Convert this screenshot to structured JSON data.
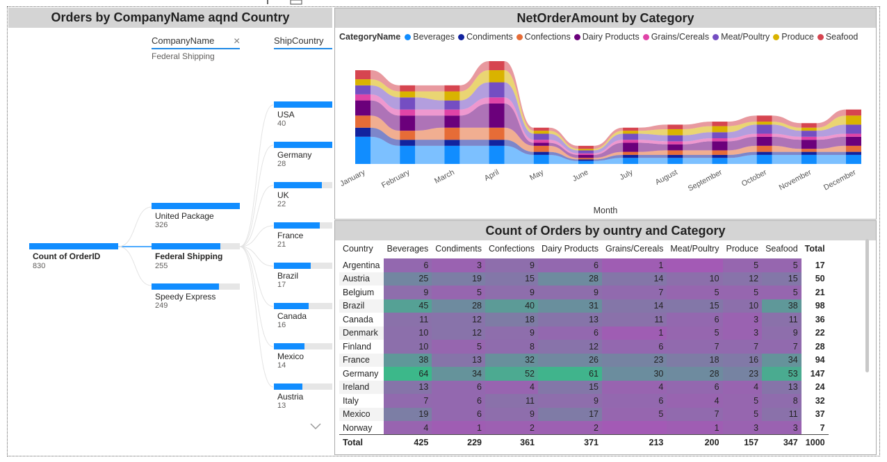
{
  "left_panel": {
    "title": "Orders by CompanyName aqnd Country",
    "company_header": "CompanyName",
    "company_filter": "Federal Shipping",
    "close_icon": "×",
    "country_header": "ShipCountry",
    "root": {
      "label": "Count of OrderID",
      "value": "830",
      "fill": 1.0
    },
    "companies": [
      {
        "label": "United Package",
        "value": "326",
        "fill": 1.0
      },
      {
        "label": "Federal Shipping",
        "value": "255",
        "fill": 0.78
      },
      {
        "label": "Speedy Express",
        "value": "249",
        "fill": 0.76
      }
    ],
    "countries": [
      {
        "label": "USA",
        "value": "40",
        "fill": 1.0
      },
      {
        "label": "Germany",
        "value": "28",
        "fill": 1.0
      },
      {
        "label": "UK",
        "value": "22",
        "fill": 0.82
      },
      {
        "label": "France",
        "value": "21",
        "fill": 0.78
      },
      {
        "label": "Brazil",
        "value": "17",
        "fill": 0.63
      },
      {
        "label": "Canada",
        "value": "16",
        "fill": 0.6
      },
      {
        "label": "Mexico",
        "value": "14",
        "fill": 0.52
      },
      {
        "label": "Austria",
        "value": "13",
        "fill": 0.49
      }
    ]
  },
  "chart_panel": {
    "title": "NetOrderAmount by Category",
    "legend_title": "CategoryName",
    "xlabel": "Month"
  },
  "chart_data": {
    "type": "area",
    "title": "NetOrderAmount by Category",
    "xlabel": "Month",
    "ylabel": "",
    "legend_title": "CategoryName",
    "legend_position": "top-left",
    "categories": [
      "January",
      "February",
      "March",
      "April",
      "May",
      "June",
      "July",
      "August",
      "September",
      "October",
      "November",
      "December"
    ],
    "series": [
      {
        "name": "Beverages",
        "color": "#118dff",
        "values": [
          9,
          6,
          6,
          6,
          3,
          1,
          2,
          2,
          2,
          3,
          3,
          3
        ]
      },
      {
        "name": "Condiments",
        "color": "#12239e",
        "values": [
          3,
          2,
          2,
          2,
          1,
          0.5,
          1,
          1,
          1,
          1,
          1,
          1
        ]
      },
      {
        "name": "Confections",
        "color": "#e66c37",
        "values": [
          4,
          3,
          4,
          4,
          2,
          0.5,
          1,
          1.5,
          1.5,
          2,
          1,
          2
        ]
      },
      {
        "name": "Dairy Products",
        "color": "#6b007b",
        "values": [
          5,
          5,
          4,
          8,
          1,
          1,
          3,
          2,
          3,
          3,
          3,
          3
        ]
      },
      {
        "name": "Grains/Cereals",
        "color": "#e044a7",
        "values": [
          2,
          2,
          2,
          2,
          1,
          0.5,
          1,
          1,
          1,
          1,
          1,
          1
        ]
      },
      {
        "name": "Meat/Poultry",
        "color": "#744ec2",
        "values": [
          3,
          4,
          3,
          5,
          2,
          1,
          2,
          2,
          2,
          3,
          2,
          3
        ]
      },
      {
        "name": "Produce",
        "color": "#d9b300",
        "values": [
          2,
          2,
          3,
          4,
          1,
          0.5,
          1,
          2,
          2,
          1,
          1,
          3
        ]
      },
      {
        "name": "Seafood",
        "color": "#d64550",
        "values": [
          3,
          2,
          2,
          3,
          1,
          1,
          1,
          1.5,
          1.5,
          2,
          1.5,
          2
        ]
      }
    ]
  },
  "table_panel": {
    "title": "Count of Orders by ountry and Category",
    "headers": [
      "Country",
      "Beverages",
      "Condiments",
      "Confections",
      "Dairy Products",
      "Grains/Cereals",
      "Meat/Poultry",
      "Produce",
      "Seafood",
      "Total"
    ],
    "rows": [
      {
        "country": "Argentina",
        "cells": [
          "6",
          "3",
          "9",
          "6",
          "1",
          "",
          "5",
          "5"
        ],
        "total": "17"
      },
      {
        "country": "Austria",
        "cells": [
          "25",
          "19",
          "15",
          "28",
          "14",
          "10",
          "12",
          "15"
        ],
        "total": "50"
      },
      {
        "country": "Belgium",
        "cells": [
          "9",
          "5",
          "9",
          "9",
          "7",
          "5",
          "5",
          "5"
        ],
        "total": "21"
      },
      {
        "country": "Brazil",
        "cells": [
          "45",
          "28",
          "40",
          "31",
          "14",
          "15",
          "10",
          "38"
        ],
        "total": "98"
      },
      {
        "country": "Canada",
        "cells": [
          "11",
          "12",
          "18",
          "13",
          "11",
          "6",
          "3",
          "11"
        ],
        "total": "36"
      },
      {
        "country": "Denmark",
        "cells": [
          "10",
          "12",
          "9",
          "6",
          "1",
          "5",
          "3",
          "9"
        ],
        "total": "22"
      },
      {
        "country": "Finland",
        "cells": [
          "10",
          "5",
          "8",
          "12",
          "6",
          "7",
          "7",
          "7"
        ],
        "total": "28"
      },
      {
        "country": "France",
        "cells": [
          "38",
          "13",
          "32",
          "26",
          "23",
          "18",
          "16",
          "34"
        ],
        "total": "94"
      },
      {
        "country": "Germany",
        "cells": [
          "64",
          "34",
          "52",
          "61",
          "30",
          "28",
          "23",
          "53"
        ],
        "total": "147"
      },
      {
        "country": "Ireland",
        "cells": [
          "13",
          "6",
          "4",
          "15",
          "4",
          "6",
          "4",
          "13"
        ],
        "total": "24"
      },
      {
        "country": "Italy",
        "cells": [
          "7",
          "6",
          "11",
          "9",
          "6",
          "4",
          "5",
          "8"
        ],
        "total": "32"
      },
      {
        "country": "Mexico",
        "cells": [
          "19",
          "6",
          "9",
          "17",
          "5",
          "7",
          "5",
          "11"
        ],
        "total": "37"
      },
      {
        "country": "Norway",
        "cells": [
          "4",
          "1",
          "2",
          "2",
          "",
          "1",
          "3",
          "3"
        ],
        "total": "7"
      }
    ],
    "total_row": {
      "label": "Total",
      "cells": [
        "425",
        "229",
        "361",
        "371",
        "213",
        "200",
        "157",
        "347"
      ],
      "total": "1000"
    }
  },
  "colors": {
    "bar_blue": "#118dff",
    "heat_low": "#a35ab5",
    "heat_high": "#3cb88a",
    "title_bar": "#d4d4d4"
  }
}
